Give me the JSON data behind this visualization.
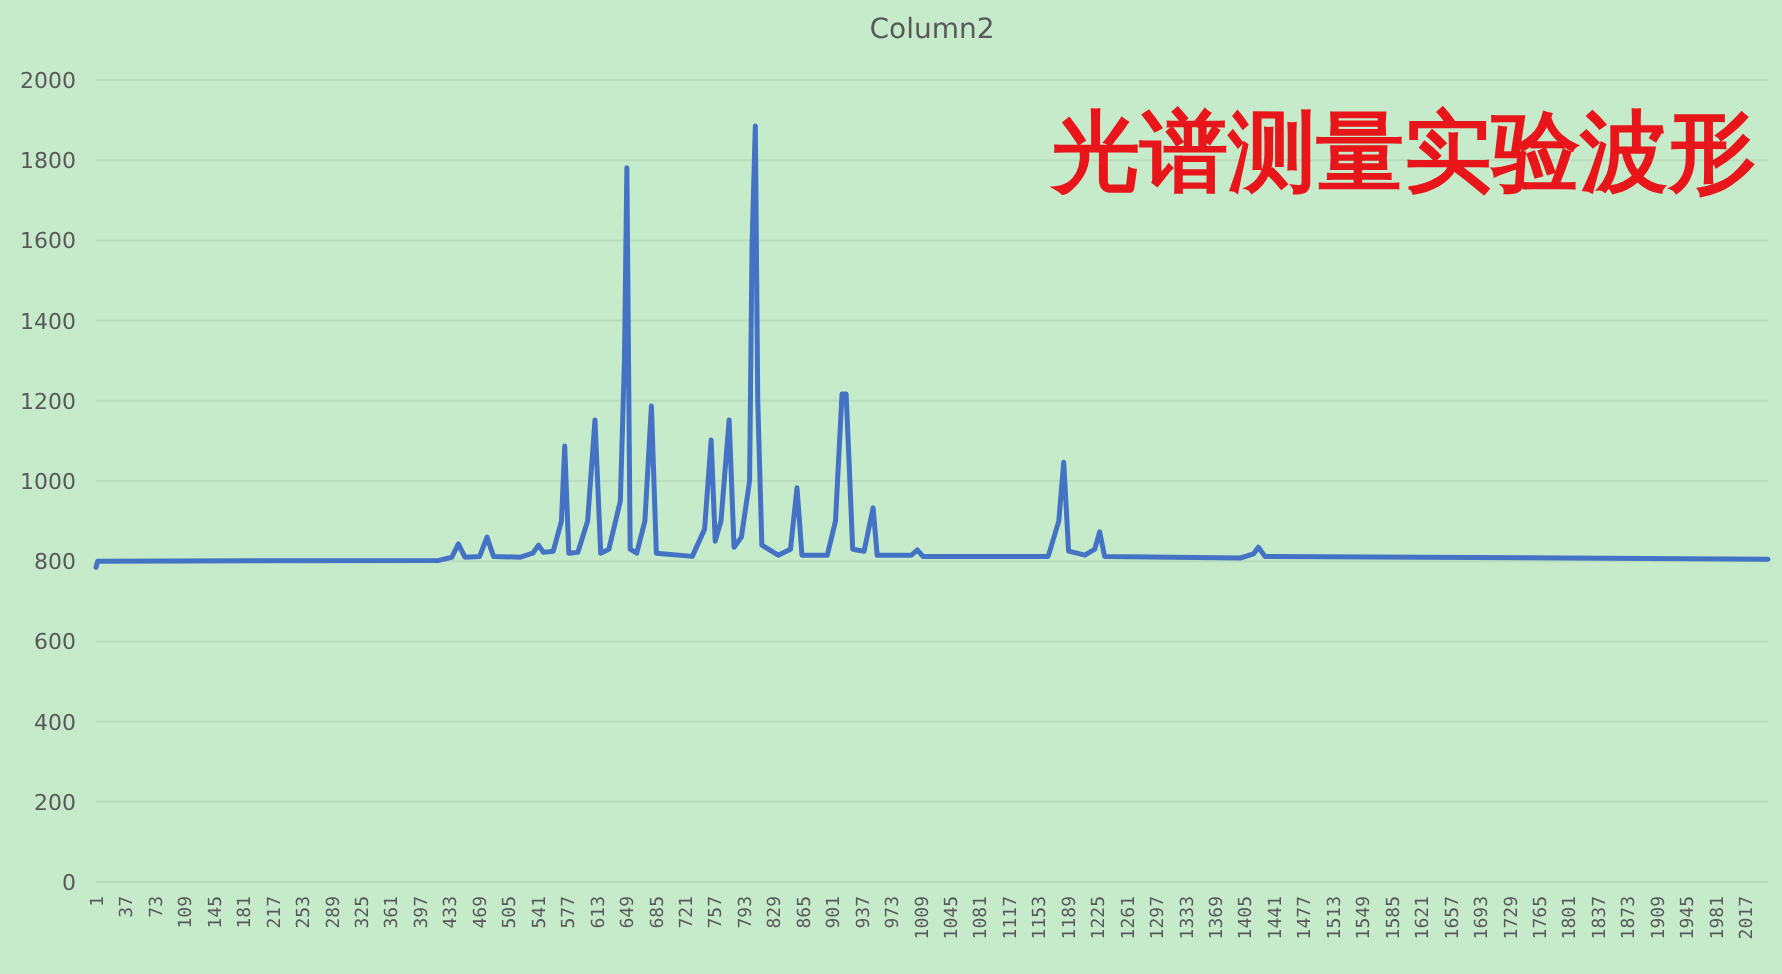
{
  "chart_data": {
    "type": "line",
    "title": "Column2",
    "annotations": [
      "光谱测量实验波形"
    ],
    "color": "#4472c4",
    "grid": "y",
    "xlim": [
      1,
      2045
    ],
    "ylim": [
      0,
      2000
    ],
    "yticks": [
      0,
      200,
      400,
      600,
      800,
      1000,
      1200,
      1400,
      1600,
      1800,
      2000
    ],
    "xticks": [
      1,
      37,
      73,
      109,
      145,
      181,
      217,
      253,
      289,
      325,
      361,
      397,
      433,
      469,
      505,
      541,
      577,
      613,
      649,
      685,
      721,
      757,
      793,
      829,
      865,
      901,
      937,
      973,
      1009,
      1045,
      1081,
      1117,
      1153,
      1189,
      1225,
      1261,
      1297,
      1333,
      1369,
      1405,
      1441,
      1477,
      1513,
      1549,
      1585,
      1621,
      1657,
      1693,
      1729,
      1765,
      1801,
      1837,
      1873,
      1909,
      1945,
      1981,
      2017
    ],
    "x": [
      1,
      3,
      420,
      436,
      444,
      452,
      470,
      479,
      487,
      520,
      535,
      542,
      548,
      560,
      570,
      574,
      579,
      590,
      602,
      611,
      618,
      628,
      642,
      647,
      650,
      654,
      662,
      672,
      680,
      686,
      730,
      745,
      753,
      758,
      765,
      775,
      781,
      790,
      800,
      803,
      807,
      810,
      815,
      835,
      850,
      858,
      864,
      895,
      905,
      913,
      918,
      922,
      926,
      940,
      951,
      956,
      998,
      1005,
      1012,
      1165,
      1178,
      1184,
      1190,
      1210,
      1222,
      1228,
      1234,
      1400,
      1416,
      1422,
      1430,
      2045
    ],
    "values": [
      785,
      800,
      802,
      810,
      843,
      810,
      812,
      860,
      812,
      810,
      820,
      840,
      822,
      825,
      900,
      1087,
      820,
      822,
      900,
      1152,
      820,
      830,
      950,
      1300,
      1781,
      830,
      820,
      900,
      1187,
      820,
      812,
      880,
      1102,
      850,
      900,
      1152,
      835,
      860,
      1000,
      1590,
      1885,
      1200,
      840,
      815,
      830,
      983,
      815,
      815,
      900,
      1217,
      1217,
      1030,
      830,
      825,
      933,
      815,
      815,
      828,
      812,
      812,
      900,
      1047,
      825,
      815,
      830,
      873,
      812,
      808,
      818,
      835,
      812,
      805
    ]
  }
}
